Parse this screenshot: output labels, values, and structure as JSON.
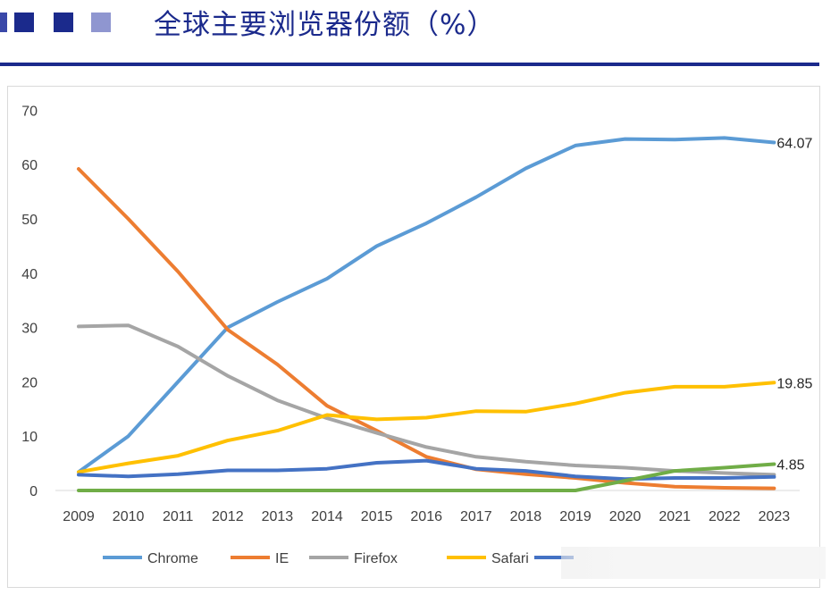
{
  "header": {
    "title": "全球主要浏览器份额（%）",
    "square_colors": [
      "#3a48a8",
      "#1b2a8c",
      "#1b2a8c",
      "#8f96d0"
    ]
  },
  "chart_data": {
    "type": "line",
    "title": "全球主要浏览器份额（%）",
    "xlabel": "",
    "ylabel": "",
    "x": [
      2009,
      2010,
      2011,
      2012,
      2013,
      2014,
      2015,
      2016,
      2017,
      2018,
      2019,
      2020,
      2021,
      2022,
      2023
    ],
    "ylim": [
      0,
      70
    ],
    "yticks": [
      0,
      10,
      20,
      30,
      40,
      50,
      60,
      70
    ],
    "grid": false,
    "legend": "bottom",
    "series": [
      {
        "name": "Chrome",
        "color": "#5b9bd5",
        "values": [
          3.4,
          10,
          20,
          30,
          34.7,
          39,
          45,
          49.2,
          54,
          59.3,
          63.5,
          64.7,
          64.6,
          64.9,
          64.07
        ],
        "end_label": "64.07"
      },
      {
        "name": "IE",
        "color": "#ed7d31",
        "values": [
          59.2,
          50,
          40.3,
          29.6,
          23.2,
          15.6,
          11,
          6.2,
          3.9,
          3,
          2.3,
          1.4,
          0.7,
          0.5,
          0.4
        ],
        "end_label": ""
      },
      {
        "name": "Firefox",
        "color": "#a5a5a5",
        "values": [
          30.2,
          30.4,
          26.5,
          21.1,
          16.6,
          13.3,
          10.6,
          8,
          6.2,
          5.3,
          4.6,
          4.2,
          3.6,
          3.2,
          2.9
        ],
        "end_label": ""
      },
      {
        "name": "Safari",
        "color": "#ffc000",
        "values": [
          3.4,
          5,
          6.4,
          9.2,
          11,
          13.9,
          13.1,
          13.4,
          14.6,
          14.5,
          16,
          18,
          19.1,
          19.1,
          19.85
        ],
        "end_label": "19.85"
      },
      {
        "name": "",
        "color": "#4472c4",
        "values": [
          2.9,
          2.6,
          3,
          3.7,
          3.7,
          4,
          5.1,
          5.5,
          4,
          3.6,
          2.6,
          2.1,
          2.3,
          2.3,
          2.5
        ],
        "end_label": ""
      },
      {
        "name": "",
        "color": "#70ad47",
        "values": [
          0,
          0,
          0,
          0,
          0,
          0,
          0,
          0,
          0,
          0,
          0,
          1.8,
          3.6,
          4.2,
          4.85
        ],
        "end_label": "4.85"
      }
    ]
  }
}
